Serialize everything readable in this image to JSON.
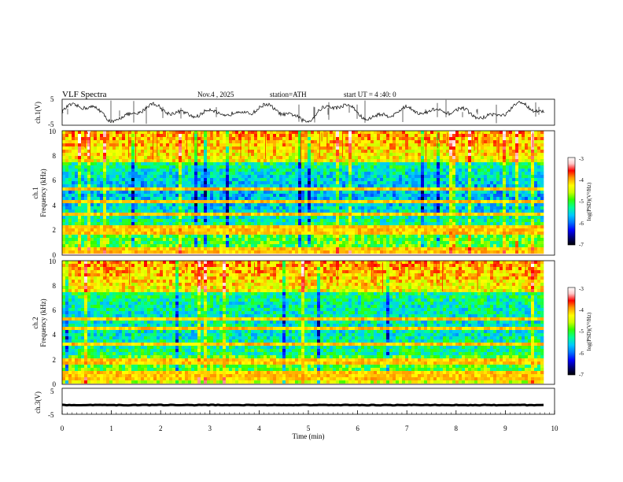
{
  "header": {
    "title": "VLF  Spectra",
    "date": "Nov.4  , 2025",
    "station": "station=ATH",
    "start_ut": "start  UT  =   4  :40: 0"
  },
  "chart_data": [
    {
      "id": "ch1-voltage",
      "type": "line",
      "ylabel": "ch.1(V)",
      "ylim": [
        -5,
        5
      ],
      "yticks": [
        "5",
        "-5"
      ],
      "xlim": [
        0,
        9.8
      ],
      "description_series": "noisy waveform oscillating roughly between -4 and 4 V"
    },
    {
      "id": "ch1-spectrogram",
      "type": "heatmap",
      "ylabel": "ch.1\nFrequency  (kHz)",
      "ylabel_line1": "ch.1",
      "ylabel_line2": "Frequency  (kHz)",
      "ylim": [
        0,
        10
      ],
      "yticks": [
        "0",
        "2",
        "4",
        "6",
        "8",
        "10"
      ],
      "xlim": [
        0,
        9.8
      ],
      "colorbar": {
        "label": "log(PSD)(V²/Hz)",
        "range": [
          -7,
          -3
        ],
        "ticks": [
          "-3",
          "-4",
          "-5",
          "-6",
          "-7"
        ]
      },
      "bands_khz": [
        0.3,
        0.7,
        2.0,
        2.3,
        3.3,
        4.3,
        5.3
      ]
    },
    {
      "id": "ch2-spectrogram",
      "type": "heatmap",
      "ylabel_line1": "ch.2",
      "ylabel_line2": "Frequency  (kHz)",
      "ylim": [
        0,
        10
      ],
      "yticks": [
        "0",
        "2",
        "4",
        "6",
        "8",
        "10"
      ],
      "xlim": [
        0,
        9.8
      ],
      "colorbar": {
        "label": "log(PSD)(V²/Hz)",
        "range": [
          -7,
          -3
        ],
        "ticks": [
          "-3",
          "-4",
          "-5",
          "-6",
          "-7"
        ]
      },
      "bands_khz": [
        0.7,
        1.0,
        1.9,
        2.1,
        3.4,
        4.6,
        5.4
      ]
    },
    {
      "id": "ch3-voltage",
      "type": "line",
      "ylabel": "ch.3(V)",
      "ylim": [
        -5,
        5
      ],
      "yticks": [
        "5",
        "-5"
      ],
      "xlim": [
        0,
        9.8
      ],
      "xlabel": "Time  (min)",
      "xticks": [
        "0",
        "1",
        "2",
        "3",
        "4",
        "5",
        "6",
        "7",
        "8",
        "9",
        "10"
      ],
      "series_value": -1.6
    }
  ],
  "colors": {
    "scale": [
      "#000000",
      "#000070",
      "#0000ff",
      "#0078ff",
      "#00c8ff",
      "#00ff96",
      "#32ff00",
      "#c8ff00",
      "#ffff00",
      "#ff9600",
      "#ff0000",
      "#ffc8c8",
      "#ffffff"
    ],
    "line": "#000000"
  }
}
